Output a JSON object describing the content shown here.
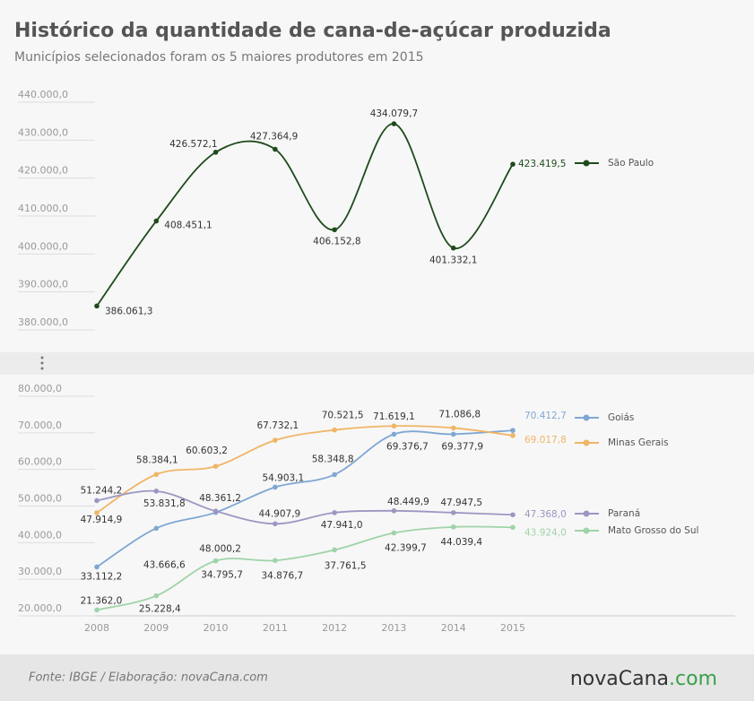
{
  "chart_data": [
    {
      "type": "line",
      "title": "Histórico da quantidade de cana-de-açúcar produzida",
      "subtitle": "Municípios selecionados foram os 5 maiores produtores em 2015",
      "ylim": [
        380000,
        440000
      ],
      "yticks": [
        {
          "value": 380000,
          "label": "380.000,0"
        },
        {
          "value": 390000,
          "label": "390.000,0"
        },
        {
          "value": 400000,
          "label": "400.000,0"
        },
        {
          "value": 410000,
          "label": "410.000,0"
        },
        {
          "value": 420000,
          "label": "420.000,0"
        },
        {
          "value": 430000,
          "label": "430.000,0"
        },
        {
          "value": 440000,
          "label": "440.000,0"
        }
      ],
      "series": [
        {
          "name": "São Paulo",
          "color": "#1f4a1c",
          "values": [
            386061.3,
            408451.1,
            426572.1,
            427364.9,
            406152.8,
            434079.7,
            401332.1,
            423419.5
          ],
          "value_labels": [
            "386.061,3",
            "408.451,1",
            "426.572,1",
            "427.364,9",
            "406.152,8",
            "434.079,7",
            "401.332,1",
            "423.419,5"
          ]
        }
      ]
    },
    {
      "type": "line",
      "categories": [
        "2008",
        "2009",
        "2010",
        "2011",
        "2012",
        "2013",
        "2014",
        "2015"
      ],
      "ylim": [
        20000,
        80000
      ],
      "yticks": [
        {
          "value": 20000,
          "label": "20.000,0"
        },
        {
          "value": 30000,
          "label": "30.000,0"
        },
        {
          "value": 40000,
          "label": "40.000,0"
        },
        {
          "value": 50000,
          "label": "50.000,0"
        },
        {
          "value": 60000,
          "label": "60.000,0"
        },
        {
          "value": 70000,
          "label": "70.000,0"
        },
        {
          "value": 80000,
          "label": "80.000,0"
        }
      ],
      "series": [
        {
          "name": "Goiás",
          "color": "#7fa7d3",
          "values": [
            33112.2,
            43666.6,
            48000.2,
            54903.1,
            58348.8,
            69376.7,
            69377.9,
            70412.7
          ],
          "value_labels": [
            "33.112,2",
            "43.666,6",
            "48.000,2",
            "54.903,1",
            "58.348,8",
            "69.376,7",
            "69.377,9",
            "70.412,7"
          ]
        },
        {
          "name": "Minas Gerais",
          "color": "#f0b566",
          "values": [
            47914.9,
            58384.1,
            60603.2,
            67732.1,
            70521.5,
            71619.1,
            71086.8,
            69017.8
          ],
          "value_labels": [
            "47.914,9",
            "58.384,1",
            "60.603,2",
            "67.732,1",
            "70.521,5",
            "71.619,1",
            "71.086,8",
            "69.017,8"
          ]
        },
        {
          "name": "Paraná",
          "color": "#9b97c2",
          "values": [
            51244.2,
            53831.8,
            48361.2,
            44907.9,
            47941.0,
            48449.9,
            47947.5,
            47368.0
          ],
          "value_labels": [
            "51.244,2",
            "53.831,8",
            "48.361,2",
            "44.907,9",
            "47.941,0",
            "48.449,9",
            "47.947,5",
            "47.368,0"
          ]
        },
        {
          "name": "Mato Grosso do Sul",
          "color": "#9fd3a8",
          "values": [
            21362.0,
            25228.4,
            34795.7,
            34876.7,
            37761.5,
            42399.7,
            44039.4,
            43924.0
          ],
          "value_labels": [
            "21.362,0",
            "25.228,4",
            "34.795,7",
            "34.876,7",
            "37.761,5",
            "42.399,7",
            "44.039,4",
            "43.924,0"
          ]
        }
      ]
    }
  ],
  "footer": {
    "source": "Fonte:  IBGE / Elaboração:  novaCana.com",
    "logo": [
      "novaCana",
      ".com"
    ]
  }
}
